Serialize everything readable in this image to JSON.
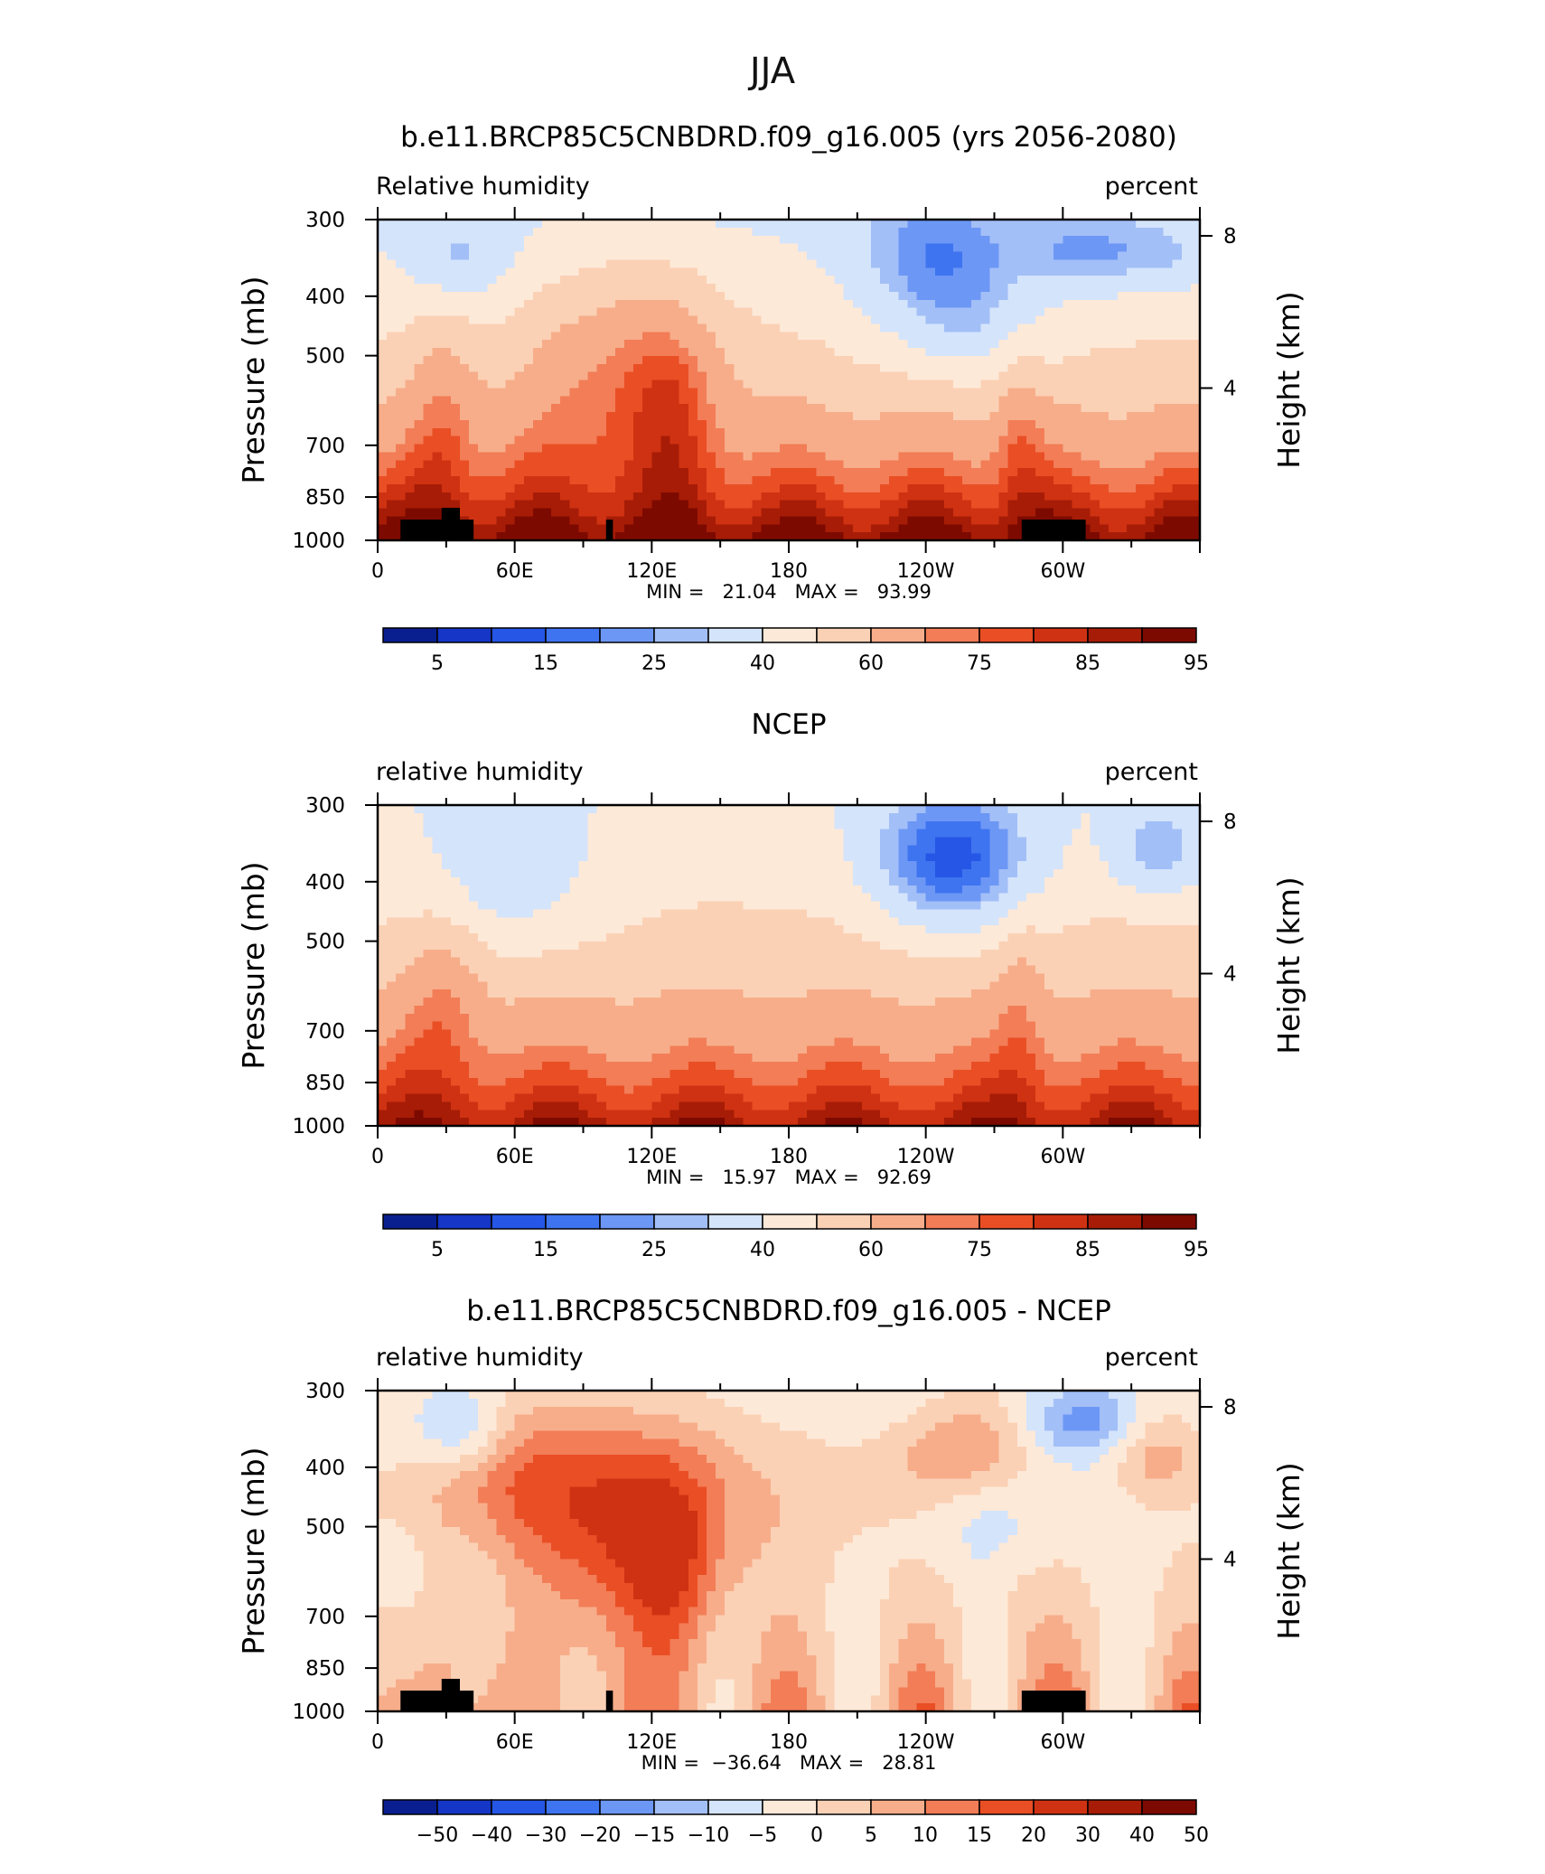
{
  "figure": {
    "title": "JJA"
  },
  "colors": {
    "contour_palette": [
      "#0a1f8f",
      "#1536c6",
      "#2556e6",
      "#3f74f0",
      "#6c97f5",
      "#a3bff7",
      "#d4e4fb",
      "#fde9d8",
      "#fbd1b5",
      "#f7ad8a",
      "#f27d57",
      "#ea4e25",
      "#cf3212",
      "#a71c06",
      "#7d0a00"
    ],
    "terrain": "#000000",
    "frame": "#000000"
  },
  "chart_data": [
    {
      "type": "heatmap",
      "title": "b.e11.BRCP85C5CNBDRD.f09_g16.005 (yrs 2056-2080)",
      "left_label": "Relative humidity",
      "right_label": "percent",
      "ylabel": "Pressure (mb)",
      "y2label": "Height (km)",
      "x_ticks": [
        "0",
        "60E",
        "120E",
        "180",
        "120W",
        "60W"
      ],
      "x_tick_lon": [
        0,
        60,
        120,
        180,
        240,
        300
      ],
      "xlim": [
        0,
        360
      ],
      "y_ticks": [
        "300",
        "400",
        "500",
        "700",
        "850",
        "1000"
      ],
      "y_tick_p": [
        300,
        400,
        500,
        700,
        850,
        1000
      ],
      "ylim": [
        1000,
        300
      ],
      "y2_ticks": [
        "4",
        "8"
      ],
      "y2_tick_km": [
        4,
        8
      ],
      "stats": "MIN =   21.04   MAX =   93.99",
      "min": 21.04,
      "max": 93.99,
      "colorbar_labels": [
        "5",
        "15",
        "25",
        "40",
        "60",
        "75",
        "85",
        "95"
      ],
      "terrain": true
    },
    {
      "type": "heatmap",
      "title": "NCEP",
      "left_label": "relative humidity",
      "right_label": "percent",
      "ylabel": "Pressure (mb)",
      "y2label": "Height (km)",
      "x_ticks": [
        "0",
        "60E",
        "120E",
        "180",
        "120W",
        "60W"
      ],
      "x_tick_lon": [
        0,
        60,
        120,
        180,
        240,
        300
      ],
      "xlim": [
        0,
        360
      ],
      "y_ticks": [
        "300",
        "400",
        "500",
        "700",
        "850",
        "1000"
      ],
      "y_tick_p": [
        300,
        400,
        500,
        700,
        850,
        1000
      ],
      "ylim": [
        1000,
        300
      ],
      "y2_ticks": [
        "4",
        "8"
      ],
      "y2_tick_km": [
        4,
        8
      ],
      "stats": "MIN =   15.97   MAX =   92.69",
      "min": 15.97,
      "max": 92.69,
      "colorbar_labels": [
        "5",
        "15",
        "25",
        "40",
        "60",
        "75",
        "85",
        "95"
      ],
      "terrain": false
    },
    {
      "type": "heatmap",
      "title": "b.e11.BRCP85C5CNBDRD.f09_g16.005 - NCEP",
      "left_label": "relative humidity",
      "right_label": "percent",
      "ylabel": "Pressure (mb)",
      "y2label": "Height (km)",
      "x_ticks": [
        "0",
        "60E",
        "120E",
        "180",
        "120W",
        "60W"
      ],
      "x_tick_lon": [
        0,
        60,
        120,
        180,
        240,
        300
      ],
      "xlim": [
        0,
        360
      ],
      "y_ticks": [
        "300",
        "400",
        "500",
        "700",
        "850",
        "1000"
      ],
      "y_tick_p": [
        300,
        400,
        500,
        700,
        850,
        1000
      ],
      "ylim": [
        1000,
        300
      ],
      "y2_ticks": [
        "4",
        "8"
      ],
      "y2_tick_km": [
        4,
        8
      ],
      "stats": "MIN =  −36.64   MAX =   28.81",
      "min": -36.64,
      "max": 28.81,
      "colorbar_labels": [
        "−50",
        "−40",
        "−30",
        "−20",
        "−15",
        "−10",
        "−5",
        "0",
        "5",
        "10",
        "15",
        "20",
        "30",
        "40",
        "50"
      ],
      "terrain": true
    }
  ]
}
